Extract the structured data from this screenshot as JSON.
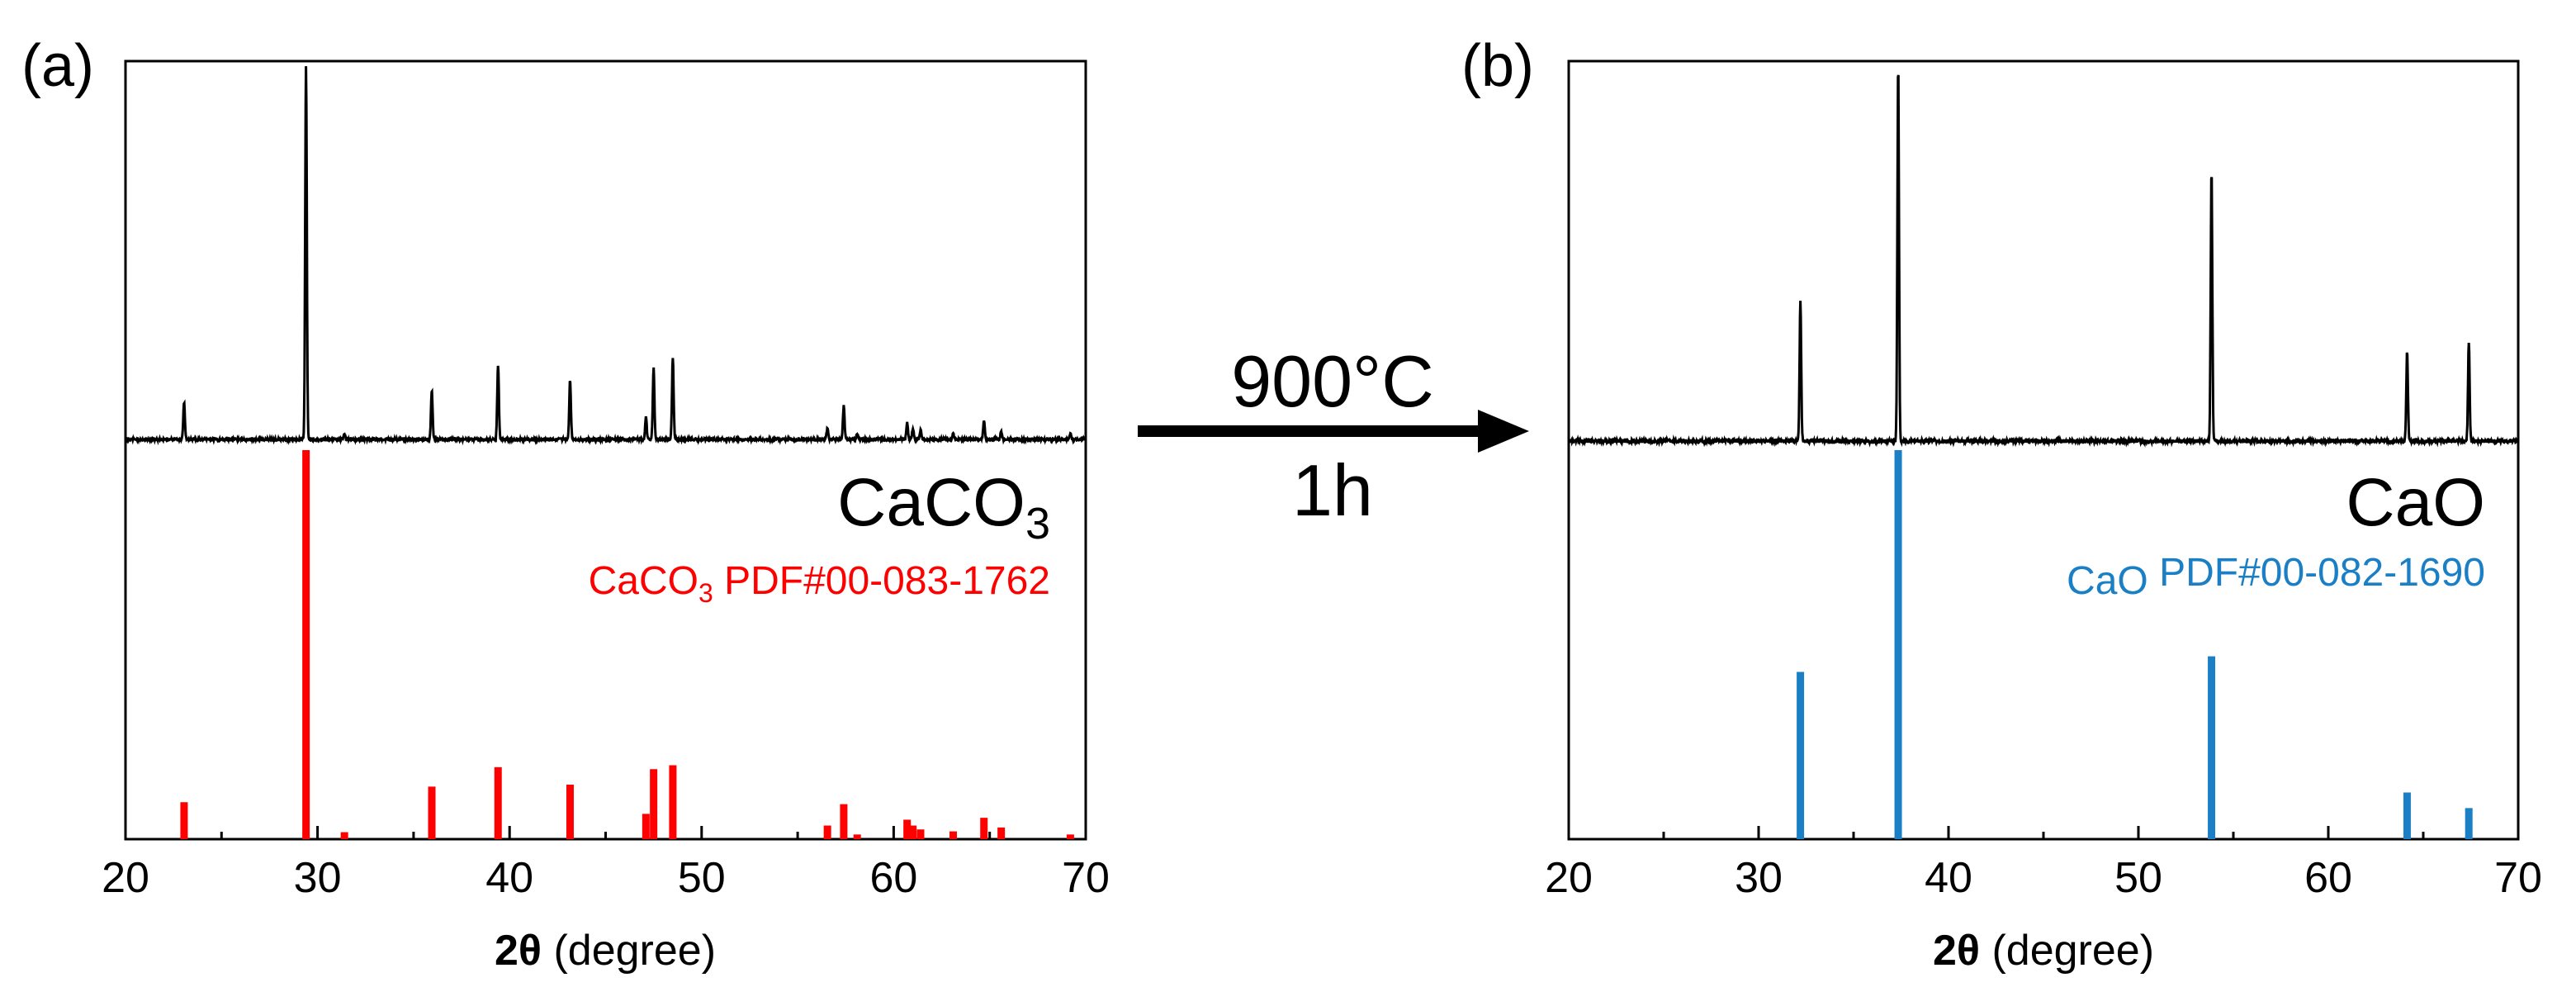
{
  "arrow": {
    "top_label": "900°C",
    "bottom_label": "1h",
    "color": "#000000"
  },
  "chart_data": [
    {
      "type": "line",
      "panel_label": "(a)",
      "xlabel_bold": "2θ",
      "xlabel_rest": " (degree)",
      "ylabel": "",
      "xlim": [
        20,
        70
      ],
      "x_ticks": [
        20,
        30,
        40,
        50,
        60,
        70
      ],
      "grid": false,
      "sample_label": {
        "base": "CaCO",
        "sub": "3"
      },
      "reference_label": {
        "base": "CaCO",
        "sub": "3",
        "rest": " PDF#00-083-1762"
      },
      "pattern_color": "#000000",
      "reference_color": "#ff0000",
      "pattern_peaks": [
        {
          "x": 23.05,
          "y": 10
        },
        {
          "x": 29.4,
          "y": 100
        },
        {
          "x": 31.4,
          "y": 1.5
        },
        {
          "x": 35.95,
          "y": 13
        },
        {
          "x": 39.4,
          "y": 20
        },
        {
          "x": 43.15,
          "y": 16
        },
        {
          "x": 47.1,
          "y": 6
        },
        {
          "x": 47.5,
          "y": 19
        },
        {
          "x": 48.5,
          "y": 22
        },
        {
          "x": 56.55,
          "y": 3
        },
        {
          "x": 57.4,
          "y": 9
        },
        {
          "x": 58.1,
          "y": 1.5
        },
        {
          "x": 60.7,
          "y": 4.5
        },
        {
          "x": 61.0,
          "y": 3
        },
        {
          "x": 61.4,
          "y": 2.5
        },
        {
          "x": 63.1,
          "y": 1.5
        },
        {
          "x": 64.7,
          "y": 5
        },
        {
          "x": 65.6,
          "y": 2
        },
        {
          "x": 69.2,
          "y": 1.5
        }
      ],
      "reference_lines": [
        {
          "x": 23.05,
          "y": 9.5
        },
        {
          "x": 29.4,
          "y": 100
        },
        {
          "x": 31.4,
          "y": 1.8
        },
        {
          "x": 35.95,
          "y": 13.5
        },
        {
          "x": 39.4,
          "y": 18.5
        },
        {
          "x": 43.15,
          "y": 14
        },
        {
          "x": 47.1,
          "y": 6.5
        },
        {
          "x": 47.5,
          "y": 18
        },
        {
          "x": 48.5,
          "y": 19
        },
        {
          "x": 56.55,
          "y": 3.5
        },
        {
          "x": 57.4,
          "y": 9
        },
        {
          "x": 58.1,
          "y": 1.2
        },
        {
          "x": 60.7,
          "y": 5
        },
        {
          "x": 61.0,
          "y": 3.5
        },
        {
          "x": 61.4,
          "y": 2.5
        },
        {
          "x": 63.1,
          "y": 2
        },
        {
          "x": 64.7,
          "y": 5.5
        },
        {
          "x": 65.6,
          "y": 3
        },
        {
          "x": 69.2,
          "y": 1.2
        }
      ]
    },
    {
      "type": "line",
      "panel_label": "(b)",
      "xlabel_bold": "2θ",
      "xlabel_rest": " (degree)",
      "ylabel": "",
      "xlim": [
        20,
        70
      ],
      "x_ticks": [
        20,
        30,
        40,
        50,
        60,
        70
      ],
      "grid": false,
      "sample_label": {
        "base": "CaO",
        "sub": ""
      },
      "reference_label": {
        "base": "CaO",
        "sub": "",
        "rest": " PDF#00-082-1690"
      },
      "pattern_color": "#000000",
      "reference_color": "#1a7fc4",
      "pattern_peaks": [
        {
          "x": 32.2,
          "y": 37
        },
        {
          "x": 37.35,
          "y": 100
        },
        {
          "x": 53.85,
          "y": 72
        },
        {
          "x": 64.15,
          "y": 24
        },
        {
          "x": 67.4,
          "y": 26
        }
      ],
      "reference_lines": [
        {
          "x": 32.2,
          "y": 43
        },
        {
          "x": 37.35,
          "y": 100
        },
        {
          "x": 53.85,
          "y": 47
        },
        {
          "x": 64.15,
          "y": 12
        },
        {
          "x": 67.4,
          "y": 8
        }
      ]
    }
  ]
}
